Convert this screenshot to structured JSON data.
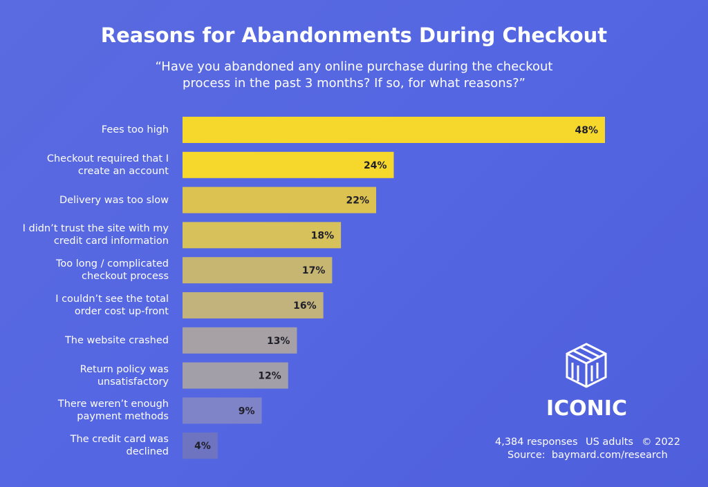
{
  "chart_data": {
    "type": "hbar",
    "title": "Reasons for Abandonments During Checkout",
    "subtitle": [
      "“Have you abandoned any online purchase during the checkout",
      "process in the past 3 months? If so, for what reasons?”"
    ],
    "categories": [
      "Fees too high",
      "Checkout required that I\ncreate an account",
      "Delivery was too slow",
      "I didn’t trust the site with my\ncredit card information",
      "Too long / complicated\ncheckout process",
      "I couldn’t see the total\norder cost up-front",
      "The website crashed",
      "Return policy was\nunsatisfactory",
      "There weren’t enough\npayment methods",
      "The credit card was\ndeclined"
    ],
    "values": [
      48,
      24,
      22,
      18,
      17,
      16,
      13,
      12,
      9,
      4
    ],
    "value_labels": [
      "48%",
      "24%",
      "22%",
      "18%",
      "17%",
      "16%",
      "13%",
      "12%",
      "9%",
      "4%"
    ],
    "colors": [
      "#f6d82c",
      "#f6d82c",
      "#dcc250",
      "#d6c15a",
      "#c7b672",
      "#c1b37b",
      "#a7a1a5",
      "#a29fa9",
      "#7f83c8",
      "#6e74bf"
    ]
  },
  "footer": {
    "brand": "ICONIC",
    "responses": "4,384 responses",
    "population": "US adults",
    "year": "© 2022",
    "source": "Source:  baymard.com/research"
  }
}
